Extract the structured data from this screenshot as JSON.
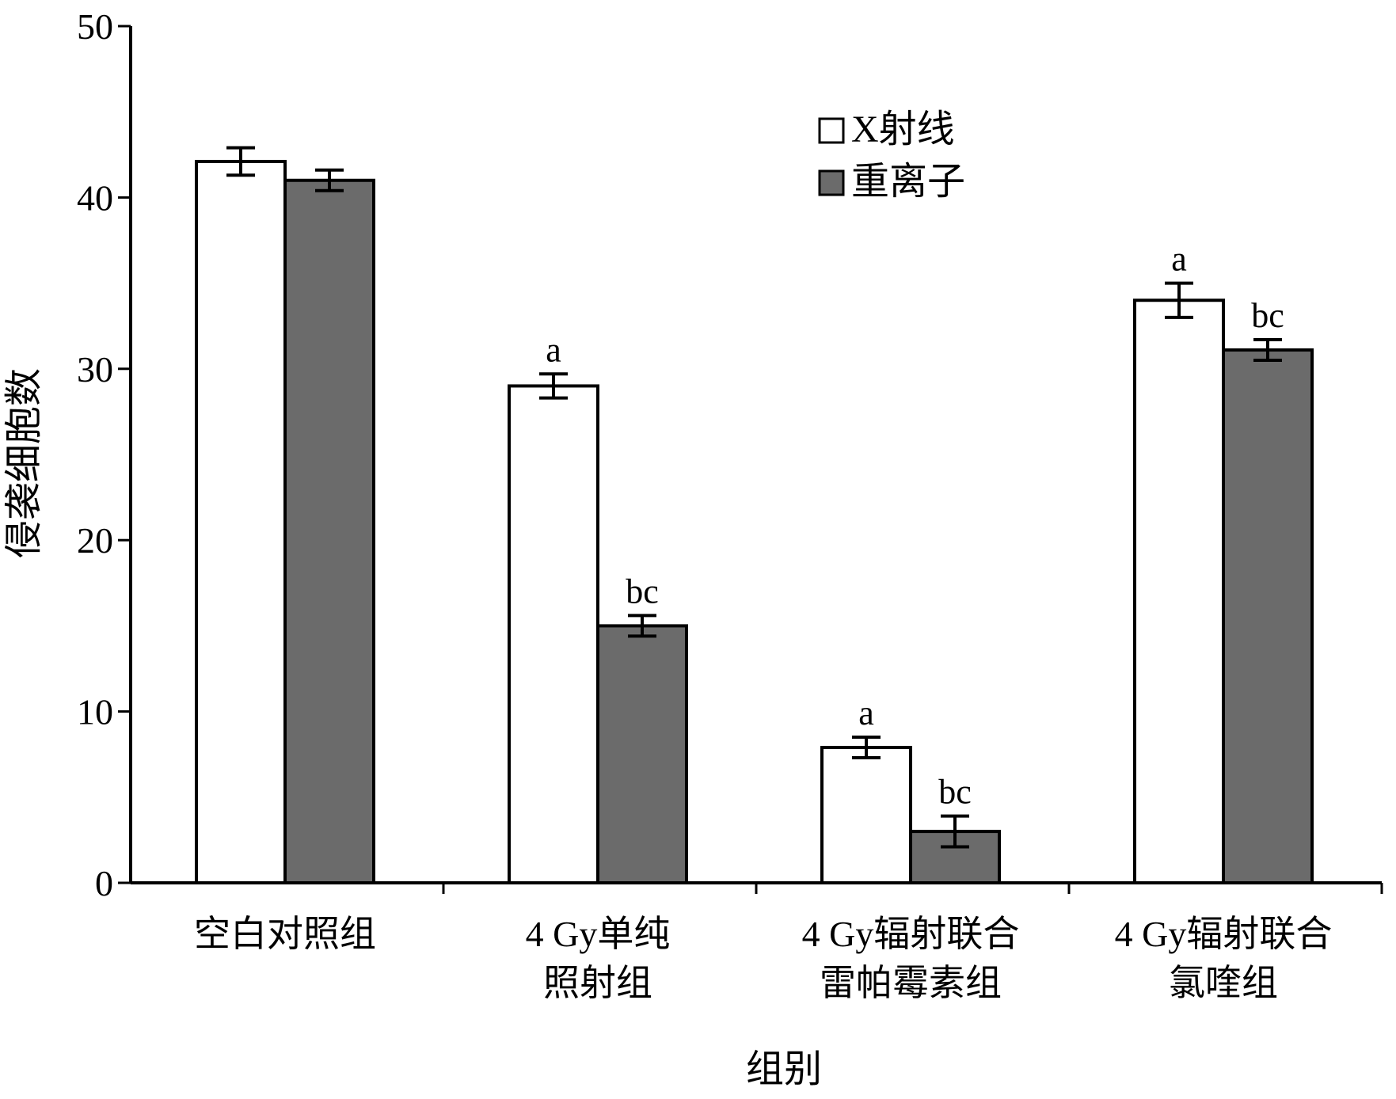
{
  "chart_data": {
    "type": "bar",
    "title": "",
    "xlabel": "组别",
    "ylabel": "侵袭细胞数",
    "ylim": [
      0,
      50
    ],
    "yticks": [
      0,
      10,
      20,
      30,
      40,
      50
    ],
    "grid": false,
    "legend_position": "top-center",
    "categories": [
      [
        "空白对照组"
      ],
      [
        "4 Gy单纯",
        "照射组"
      ],
      [
        "4 Gy辐射联合",
        "雷帕霉素组"
      ],
      [
        "4 Gy辐射联合",
        "氯喹组"
      ]
    ],
    "series": [
      {
        "name": "X射线",
        "color": "#ffffff",
        "values": [
          42.1,
          29.0,
          7.9,
          34.0
        ],
        "errors": [
          0.8,
          0.7,
          0.6,
          1.0
        ],
        "sig_labels": [
          "",
          "a",
          "a",
          "a"
        ]
      },
      {
        "name": "重离子",
        "color": "#6b6b6b",
        "values": [
          41.0,
          15.0,
          3.0,
          31.1
        ],
        "errors": [
          0.6,
          0.6,
          0.9,
          0.6
        ],
        "sig_labels": [
          "",
          "bc",
          "bc",
          "bc"
        ]
      }
    ]
  }
}
